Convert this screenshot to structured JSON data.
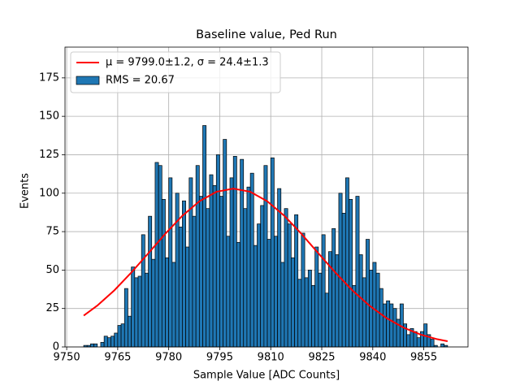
{
  "chart_data": {
    "type": "histogram",
    "title": "Baseline value, Ped Run",
    "xlabel": "Sample Value [ADC Counts]",
    "ylabel": "Events",
    "bins": [
      9755,
      9756,
      9757,
      9758,
      9759,
      9760,
      9761,
      9762,
      9763,
      9764,
      9765,
      9766,
      9767,
      9768,
      9769,
      9770,
      9771,
      9772,
      9773,
      9774,
      9775,
      9776,
      9777,
      9778,
      9779,
      9780,
      9781,
      9782,
      9783,
      9784,
      9785,
      9786,
      9787,
      9788,
      9789,
      9790,
      9791,
      9792,
      9793,
      9794,
      9795,
      9796,
      9797,
      9798,
      9799,
      9800,
      9801,
      9802,
      9803,
      9804,
      9805,
      9806,
      9807,
      9808,
      9809,
      9810,
      9811,
      9812,
      9813,
      9814,
      9815,
      9816,
      9817,
      9818,
      9819,
      9820,
      9821,
      9822,
      9823,
      9824,
      9825,
      9826,
      9827,
      9828,
      9829,
      9830,
      9831,
      9832,
      9833,
      9834,
      9835,
      9836,
      9837,
      9838,
      9839,
      9840,
      9841,
      9842,
      9843,
      9844,
      9845,
      9846,
      9847,
      9848,
      9849,
      9850,
      9851,
      9852,
      9853,
      9854,
      9855,
      9856,
      9857,
      9858,
      9859,
      9860,
      9861,
      9862
    ],
    "values": [
      1,
      1,
      2,
      2,
      0,
      3,
      7,
      6,
      7,
      9,
      14,
      15,
      38,
      20,
      52,
      45,
      46,
      73,
      48,
      85,
      57,
      120,
      118,
      96,
      58,
      110,
      55,
      100,
      78,
      95,
      65,
      110,
      85,
      118,
      98,
      144,
      90,
      112,
      105,
      125,
      98,
      135,
      72,
      110,
      124,
      68,
      122,
      90,
      104,
      113,
      66,
      80,
      92,
      118,
      70,
      123,
      72,
      103,
      55,
      90,
      80,
      58,
      86,
      44,
      74,
      45,
      50,
      40,
      65,
      48,
      73,
      35,
      62,
      77,
      60,
      100,
      87,
      110,
      96,
      40,
      98,
      60,
      45,
      70,
      50,
      55,
      48,
      38,
      28,
      30,
      28,
      25,
      18,
      28,
      15,
      8,
      12,
      10,
      6,
      10,
      15,
      8,
      5,
      1,
      0,
      2,
      1
    ],
    "name": "RMS = 20.67",
    "color": "#1f77b4",
    "edgecolor": "#000000",
    "fit": {
      "name": "μ = 9799.0±1.2, σ = 24.4±1.3",
      "color": "#ff0000",
      "x": [
        9755,
        9759,
        9764,
        9769,
        9774,
        9779,
        9784,
        9789,
        9794,
        9799,
        9804,
        9809,
        9814,
        9819,
        9824,
        9829,
        9834,
        9839,
        9844,
        9849,
        9854,
        9859,
        9862
      ],
      "values": [
        20.4,
        26.9,
        36.8,
        48.4,
        60.9,
        73.6,
        85.3,
        94.7,
        100.9,
        103,
        100.9,
        94.7,
        85.3,
        73.6,
        60.9,
        48.4,
        36.8,
        26.9,
        18.8,
        12.6,
        8.1,
        5.0,
        3.7
      ]
    },
    "xlim": [
      9749.5,
      9868
    ],
    "ylim": [
      0,
      195
    ],
    "xticks": [
      9750,
      9765,
      9780,
      9795,
      9810,
      9825,
      9840,
      9855
    ],
    "yticks": [
      0,
      25,
      50,
      75,
      100,
      125,
      150,
      175
    ],
    "grid": true,
    "legend": "upper left"
  }
}
